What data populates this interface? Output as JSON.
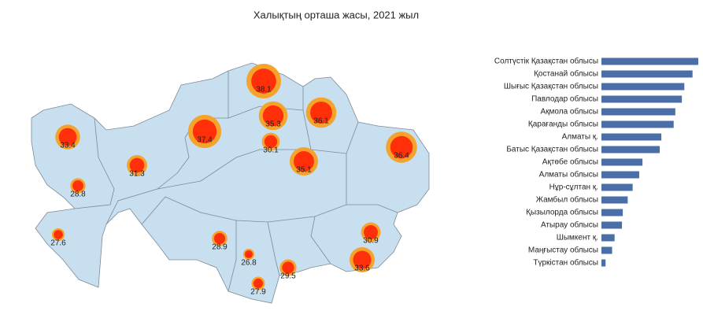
{
  "chart_data": [
    {
      "type": "bubble-map",
      "title": "Халықтың орташа жасы, 2021 жыл",
      "values": [
        38.1,
        37.4,
        36.4,
        36.1,
        35.3,
        35.1,
        33.6,
        33.4,
        31.3,
        30.9,
        30.1,
        29.5,
        28.9,
        28.8,
        27.9,
        27.6,
        26.8
      ],
      "color": "#f5a32b",
      "inner_color": "#ff2f0a"
    },
    {
      "type": "bar",
      "categories": [
        "Солтүстік Қазақстан облысы",
        "Қостанай облысы",
        "Шығыс Қазақстан облысы",
        "Павлодар облысы",
        "Ақмола облысы",
        "Қарағанды облысы",
        "Алматы қ.",
        "Батыс Қазақстан облысы",
        "Ақтөбе облысы",
        "Алматы облысы",
        "Нұр-сұлтан қ.",
        "Жамбыл облысы",
        "Қызылорда облысы",
        "Атырау облысы",
        "Шымкент қ.",
        "Маңғыстау облысы",
        "Түркістан облысы"
      ],
      "values": [
        38.1,
        37.4,
        36.4,
        36.1,
        35.3,
        35.1,
        33.6,
        33.4,
        31.3,
        30.9,
        30.1,
        29.5,
        28.9,
        28.8,
        27.9,
        27.6,
        26.8
      ],
      "color": "#4a6ea6",
      "xlim": [
        26.3,
        38.1
      ]
    }
  ]
}
